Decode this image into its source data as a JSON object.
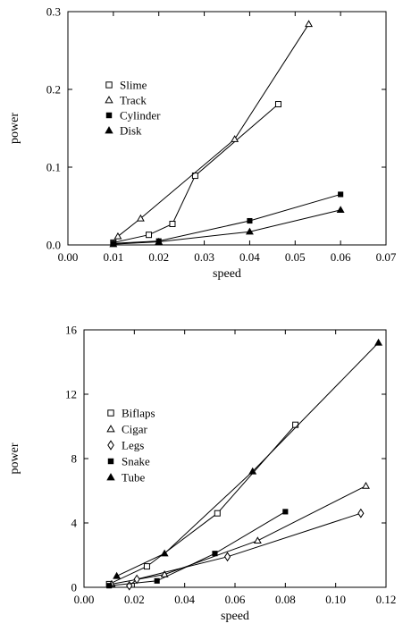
{
  "chart_data": [
    {
      "type": "scatter",
      "title": "",
      "xlabel": "speed",
      "ylabel": "power",
      "xlim": [
        0.0,
        0.07
      ],
      "ylim": [
        0.0,
        0.3
      ],
      "xticks": [
        "0.00",
        "0.01",
        "0.02",
        "0.03",
        "0.04",
        "0.05",
        "0.06",
        "0.07"
      ],
      "yticks": [
        "0.0",
        "0.1",
        "0.2",
        "0.3"
      ],
      "grid": false,
      "legend_position": "center-left",
      "series": [
        {
          "name": "Slime",
          "marker": "open-square",
          "x": [
            0.01,
            0.0178,
            0.023,
            0.028,
            0.0463
          ],
          "y": [
            0.003,
            0.013,
            0.027,
            0.089,
            0.181
          ]
        },
        {
          "name": "Track",
          "marker": "open-triangle",
          "x": [
            0.011,
            0.016,
            0.0367,
            0.053
          ],
          "y": [
            0.011,
            0.034,
            0.136,
            0.284
          ]
        },
        {
          "name": "Cylinder",
          "marker": "filled-square",
          "x": [
            0.01,
            0.02,
            0.04,
            0.06
          ],
          "y": [
            0.002,
            0.005,
            0.031,
            0.065
          ]
        },
        {
          "name": "Disk",
          "marker": "filled-triangle",
          "x": [
            0.01,
            0.02,
            0.04,
            0.06
          ],
          "y": [
            0.001,
            0.004,
            0.017,
            0.045
          ]
        }
      ]
    },
    {
      "type": "scatter",
      "title": "",
      "xlabel": "speed",
      "ylabel": "power",
      "xlim": [
        0.0,
        0.12
      ],
      "ylim": [
        0,
        16
      ],
      "xticks": [
        "0.00",
        "0.02",
        "0.04",
        "0.06",
        "0.08",
        "0.10",
        "0.12"
      ],
      "yticks": [
        "0",
        "4",
        "8",
        "12",
        "16"
      ],
      "grid": false,
      "legend_position": "center-left",
      "series": [
        {
          "name": "Biflaps",
          "marker": "open-square",
          "x": [
            0.01,
            0.025,
            0.053,
            0.084
          ],
          "y": [
            0.2,
            1.3,
            4.6,
            10.1
          ]
        },
        {
          "name": "Cigar",
          "marker": "open-triangle",
          "x": [
            0.011,
            0.032,
            0.069,
            0.112
          ],
          "y": [
            0.2,
            0.8,
            2.9,
            6.3
          ]
        },
        {
          "name": "Legs",
          "marker": "open-diamond",
          "x": [
            0.018,
            0.021,
            0.057,
            0.11
          ],
          "y": [
            0.1,
            0.5,
            1.9,
            4.6
          ]
        },
        {
          "name": "Snake",
          "marker": "filled-square",
          "x": [
            0.01,
            0.029,
            0.052,
            0.08
          ],
          "y": [
            0.1,
            0.4,
            2.1,
            4.7
          ]
        },
        {
          "name": "Tube",
          "marker": "filled-triangle",
          "x": [
            0.013,
            0.032,
            0.067,
            0.117
          ],
          "y": [
            0.7,
            2.1,
            7.2,
            15.2
          ]
        }
      ]
    }
  ]
}
